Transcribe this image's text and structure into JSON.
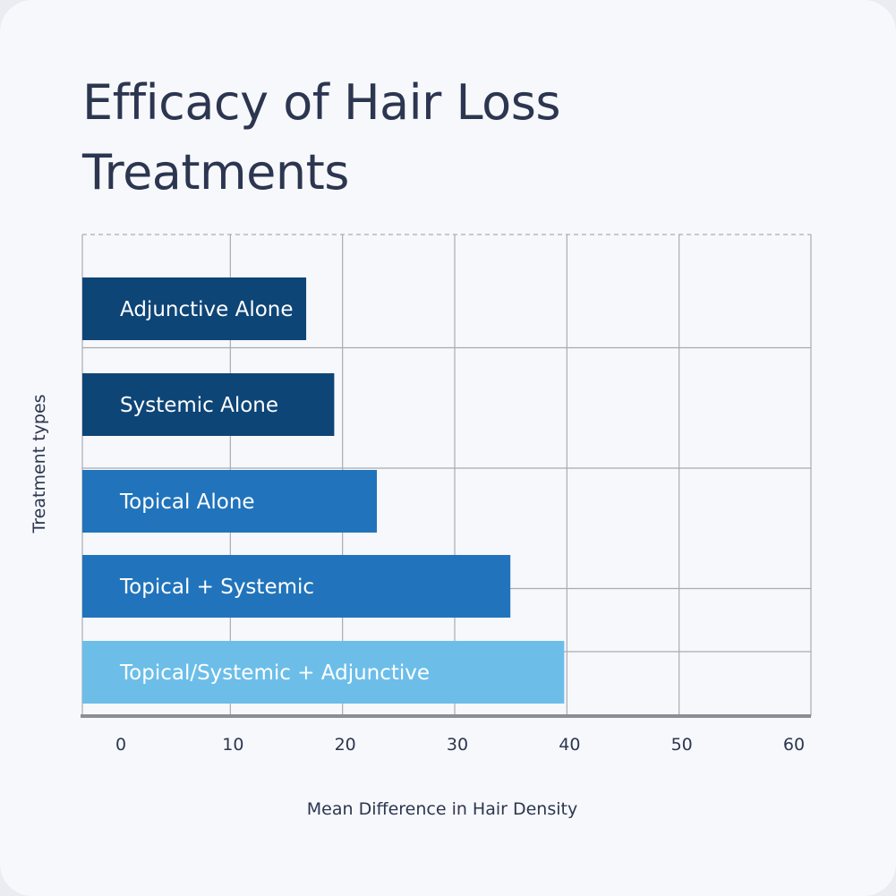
{
  "chart_data": {
    "type": "bar",
    "orientation": "horizontal",
    "title": "Efficacy of Hair Loss Treatments",
    "xlabel": "Mean Difference in Hair Density",
    "ylabel": "Treatment types",
    "xlim": [
      0,
      60
    ],
    "x_ticks": [
      "0",
      "10",
      "20",
      "30",
      "40",
      "50",
      "60"
    ],
    "grid": true,
    "legend": "none",
    "categories": [
      "Adjunctive Alone",
      "Systemic Alone",
      "Topical Alone",
      "Topical + Systemic",
      "Topical/Systemic + Adjunctive"
    ],
    "values": [
      17,
      19.5,
      23.3,
      35.2,
      40
    ],
    "colors": [
      "#0e4577",
      "#0e4577",
      "#2174bb",
      "#2174bb",
      "#6cbee9"
    ]
  }
}
